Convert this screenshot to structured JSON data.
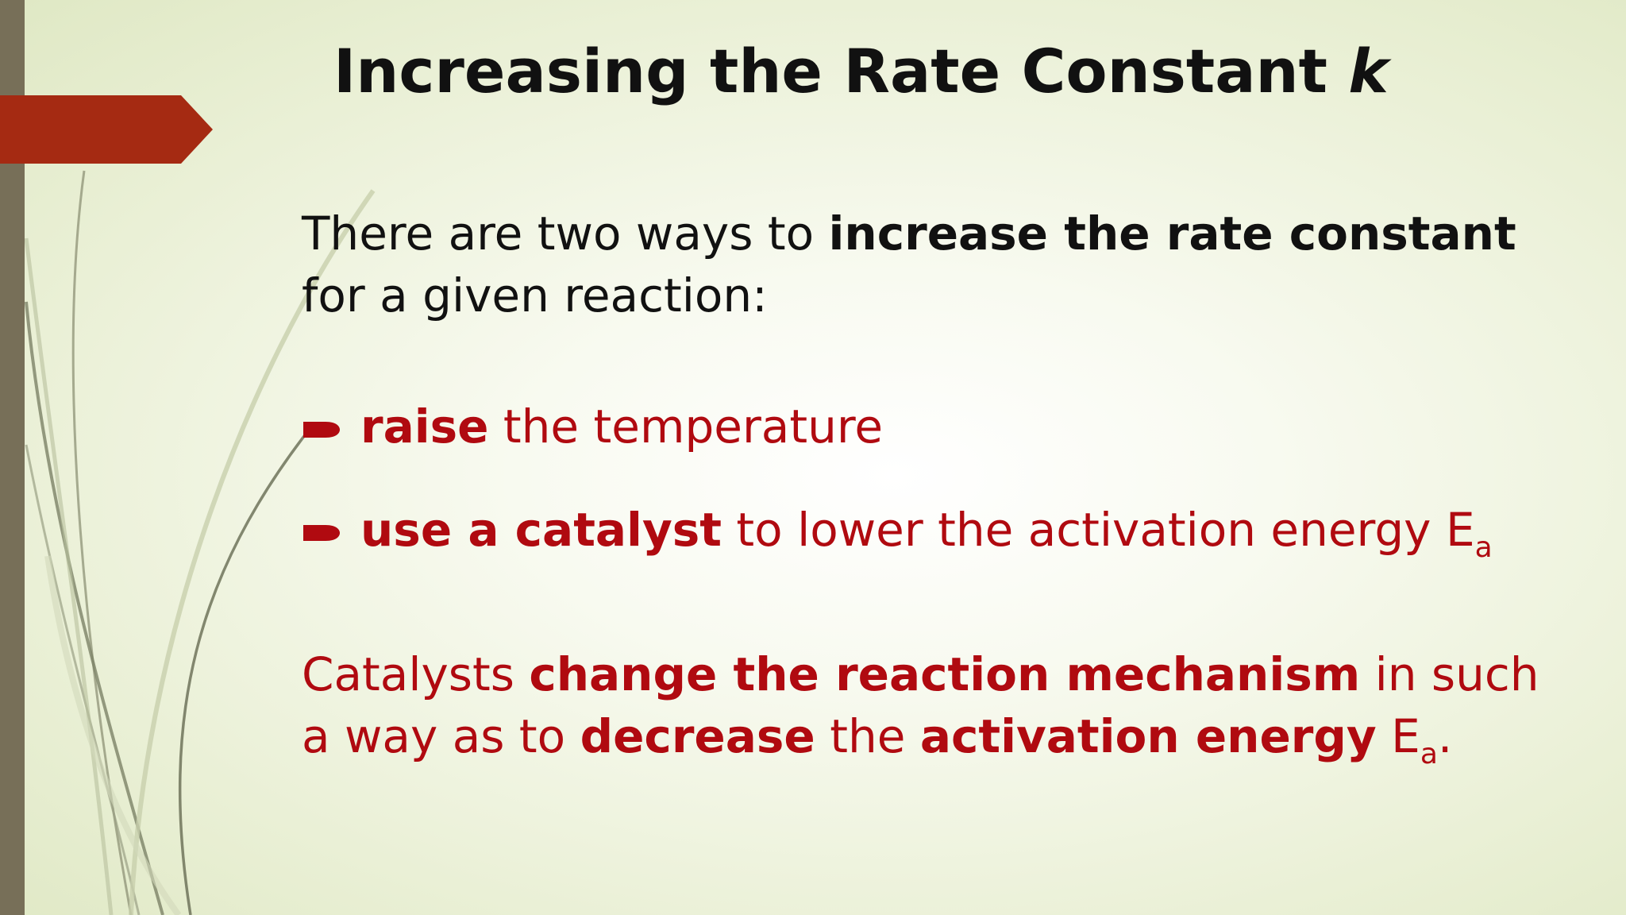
{
  "slide": {
    "title_main": "Increasing the Rate Constant ",
    "title_var": "k",
    "intro": {
      "plain1": "There are two ways to ",
      "bold1": "increase the rate constant",
      "plain2": " for a given reaction:"
    },
    "bullets": [
      {
        "bold": "raise",
        "rest": " the temperature"
      },
      {
        "bold": "use a catalyst",
        "rest": " to lower the activation energy E",
        "sub": "a"
      }
    ],
    "catalyst": {
      "t1": "Catalysts ",
      "b1": "change the reaction mechanism",
      "t2": " in such a way as to ",
      "b2": "decrease",
      "t3": " the ",
      "b3": "activation energy",
      "t4": " E",
      "sub": "a",
      "t5": "."
    },
    "colors": {
      "accent_red": "#b00a10",
      "arrow_tab": "#a52a12",
      "left_bar": "#776f58"
    }
  }
}
